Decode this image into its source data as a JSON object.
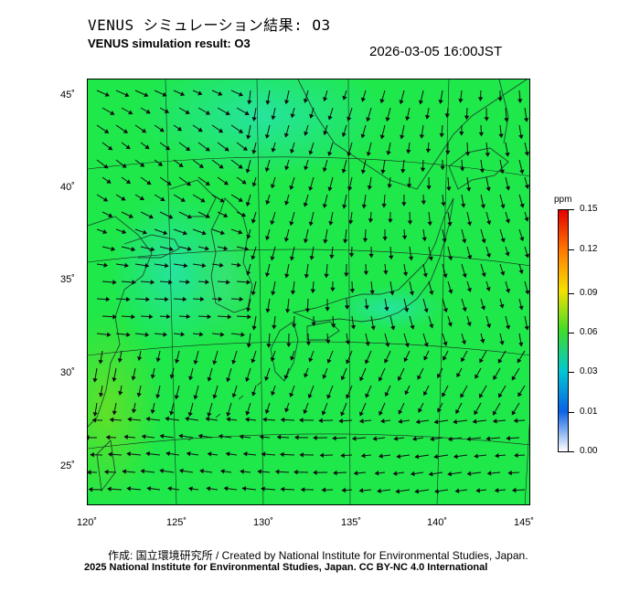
{
  "header": {
    "title_jp": "VENUS シミュレーション結果: O3",
    "title_en": "VENUS simulation result: O3",
    "timestamp": "2026-03-05 16:00JST"
  },
  "map": {
    "lat_labels": [
      "45˚",
      "40˚",
      "35˚",
      "30˚",
      "25˚"
    ],
    "lon_labels": [
      "120˚",
      "125˚",
      "130˚",
      "135˚",
      "140˚",
      "145˚"
    ],
    "field_colors": {
      "ocean": "#1ee84a",
      "land_mid": "#2de25e",
      "cyan_patch": "#27e3a8",
      "yellowgreen": "#64e026",
      "wind_arrow": "#111111",
      "coastline": "#1a6b3a"
    }
  },
  "colorbar": {
    "unit": "ppm",
    "labels": [
      "0.15",
      "0.12",
      "0.09",
      "0.06",
      "0.03",
      "0.01",
      "0.00"
    ],
    "stops": [
      "#e60000",
      "#ff7a00",
      "#f5e100",
      "#3fdc2a",
      "#00c8d2",
      "#0a62e6",
      "#ffffff"
    ]
  },
  "footer": {
    "credit": "作成: 国立環境研究所 / Created by National Institute for Environmental Studies, Japan.",
    "copyright": "2025 National Institute for Environmental Studies, Japan. CC BY-NC 4.0 International"
  }
}
